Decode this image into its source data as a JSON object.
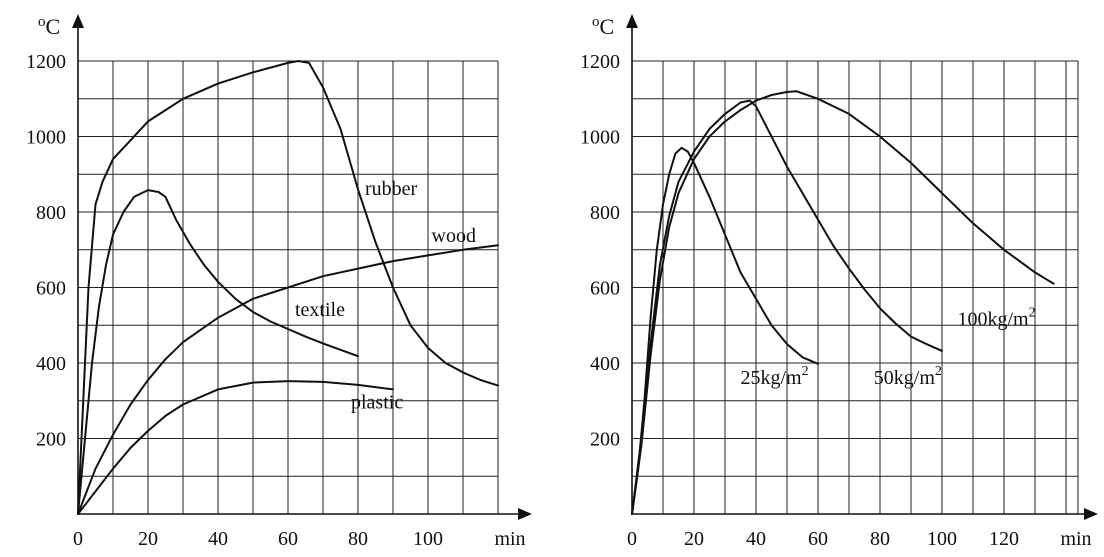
{
  "chart_data": [
    {
      "type": "line",
      "title": "",
      "ylabel_super": "o",
      "ylabel": "C",
      "xlabel": "min",
      "xlim": [
        0,
        120
      ],
      "ylim": [
        0,
        1200
      ],
      "x_ticks": [
        0,
        20,
        40,
        60,
        80,
        100
      ],
      "y_ticks": [
        200,
        400,
        600,
        800,
        1000,
        1200
      ],
      "x_tick_labels": [
        "0",
        "20",
        "40",
        "60",
        "80",
        "100"
      ],
      "y_tick_labels": [
        "200",
        "400",
        "600",
        "800",
        "1000",
        "1200"
      ],
      "grid": true,
      "series": [
        {
          "name": "rubber",
          "points": [
            [
              0,
              0
            ],
            [
              3,
              600
            ],
            [
              5,
              820
            ],
            [
              7,
              880
            ],
            [
              10,
              940
            ],
            [
              15,
              990
            ],
            [
              20,
              1040
            ],
            [
              25,
              1070
            ],
            [
              30,
              1100
            ],
            [
              40,
              1140
            ],
            [
              50,
              1170
            ],
            [
              60,
              1195
            ],
            [
              63,
              1200
            ],
            [
              66,
              1195
            ],
            [
              70,
              1130
            ],
            [
              75,
              1020
            ],
            [
              80,
              860
            ],
            [
              85,
              720
            ],
            [
              90,
              600
            ],
            [
              95,
              500
            ],
            [
              100,
              440
            ],
            [
              105,
              400
            ],
            [
              110,
              375
            ],
            [
              115,
              355
            ],
            [
              120,
              340
            ]
          ]
        },
        {
          "name": "textile",
          "points": [
            [
              0,
              0
            ],
            [
              2,
              200
            ],
            [
              4,
              400
            ],
            [
              6,
              550
            ],
            [
              8,
              660
            ],
            [
              10,
              740
            ],
            [
              13,
              800
            ],
            [
              16,
              840
            ],
            [
              20,
              858
            ],
            [
              23,
              853
            ],
            [
              25,
              840
            ],
            [
              28,
              780
            ],
            [
              32,
              715
            ],
            [
              36,
              660
            ],
            [
              40,
              615
            ],
            [
              45,
              570
            ],
            [
              50,
              535
            ],
            [
              55,
              510
            ],
            [
              60,
              490
            ],
            [
              65,
              470
            ],
            [
              70,
              452
            ],
            [
              75,
              435
            ],
            [
              80,
              418
            ]
          ]
        },
        {
          "name": "wood",
          "points": [
            [
              0,
              0
            ],
            [
              5,
              120
            ],
            [
              10,
              210
            ],
            [
              15,
              290
            ],
            [
              20,
              355
            ],
            [
              25,
              410
            ],
            [
              30,
              455
            ],
            [
              40,
              520
            ],
            [
              50,
              570
            ],
            [
              60,
              600
            ],
            [
              70,
              630
            ],
            [
              80,
              650
            ],
            [
              90,
              670
            ],
            [
              100,
              685
            ],
            [
              110,
              700
            ],
            [
              120,
              712
            ]
          ]
        },
        {
          "name": "plastic",
          "points": [
            [
              0,
              0
            ],
            [
              5,
              60
            ],
            [
              10,
              120
            ],
            [
              15,
              175
            ],
            [
              20,
              220
            ],
            [
              25,
              260
            ],
            [
              30,
              290
            ],
            [
              40,
              330
            ],
            [
              50,
              348
            ],
            [
              60,
              352
            ],
            [
              70,
              350
            ],
            [
              80,
              342
            ],
            [
              90,
              330
            ]
          ]
        }
      ],
      "labels": [
        {
          "text": "rubber",
          "x": 82,
          "y": 845
        },
        {
          "text": "wood",
          "x": 101,
          "y": 720
        },
        {
          "text": "textile",
          "x": 62,
          "y": 525
        },
        {
          "text": "plastic",
          "x": 78,
          "y": 280
        }
      ]
    },
    {
      "type": "line",
      "title": "",
      "ylabel_super": "o",
      "ylabel": "C",
      "xlabel": "min",
      "xlim": [
        0,
        140
      ],
      "ylim": [
        0,
        1200
      ],
      "x_ticks": [
        0,
        20,
        40,
        60,
        80,
        100,
        120
      ],
      "y_ticks": [
        200,
        400,
        600,
        800,
        1000,
        1200
      ],
      "x_tick_labels": [
        "0",
        "20",
        "40",
        "60",
        "80",
        "100",
        "120"
      ],
      "y_tick_labels": [
        "200",
        "400",
        "600",
        "800",
        "1000",
        "1200"
      ],
      "grid": true,
      "series": [
        {
          "name": "25kg/m 2",
          "points": [
            [
              0,
              0
            ],
            [
              2,
              120
            ],
            [
              4,
              300
            ],
            [
              6,
              520
            ],
            [
              8,
              700
            ],
            [
              10,
              820
            ],
            [
              12,
              900
            ],
            [
              14,
              955
            ],
            [
              16,
              970
            ],
            [
              18,
              960
            ],
            [
              20,
              930
            ],
            [
              25,
              840
            ],
            [
              30,
              740
            ],
            [
              35,
              640
            ],
            [
              40,
              570
            ],
            [
              45,
              500
            ],
            [
              50,
              450
            ],
            [
              55,
              415
            ],
            [
              60,
              398
            ]
          ]
        },
        {
          "name": "50kg/m2",
          "points": [
            [
              0,
              0
            ],
            [
              3,
              200
            ],
            [
              6,
              450
            ],
            [
              9,
              660
            ],
            [
              12,
              790
            ],
            [
              15,
              880
            ],
            [
              20,
              960
            ],
            [
              25,
              1020
            ],
            [
              30,
              1060
            ],
            [
              35,
              1090
            ],
            [
              38,
              1095
            ],
            [
              40,
              1080
            ],
            [
              45,
              1000
            ],
            [
              50,
              920
            ],
            [
              55,
              850
            ],
            [
              60,
              780
            ],
            [
              65,
              710
            ],
            [
              70,
              650
            ],
            [
              75,
              595
            ],
            [
              80,
              545
            ],
            [
              85,
              505
            ],
            [
              90,
              470
            ],
            [
              95,
              450
            ],
            [
              100,
              432
            ]
          ]
        },
        {
          "name": "100kg/m2",
          "points": [
            [
              0,
              0
            ],
            [
              3,
              180
            ],
            [
              6,
              420
            ],
            [
              9,
              620
            ],
            [
              12,
              760
            ],
            [
              15,
              850
            ],
            [
              20,
              940
            ],
            [
              25,
              1000
            ],
            [
              30,
              1040
            ],
            [
              35,
              1070
            ],
            [
              40,
              1095
            ],
            [
              45,
              1110
            ],
            [
              50,
              1118
            ],
            [
              53,
              1120
            ],
            [
              60,
              1100
            ],
            [
              70,
              1060
            ],
            [
              80,
              1000
            ],
            [
              90,
              930
            ],
            [
              100,
              850
            ],
            [
              110,
              770
            ],
            [
              120,
              700
            ],
            [
              130,
              640
            ],
            [
              136,
              610
            ]
          ]
        }
      ],
      "labels": [
        {
          "text": "25kg/m",
          "sup": "2",
          "x": 35,
          "y": 345
        },
        {
          "text": "50kg/m",
          "sup": "2",
          "x": 78,
          "y": 345
        },
        {
          "text": "100kg/m",
          "sup": "2",
          "x": 105,
          "y": 500
        }
      ]
    }
  ]
}
